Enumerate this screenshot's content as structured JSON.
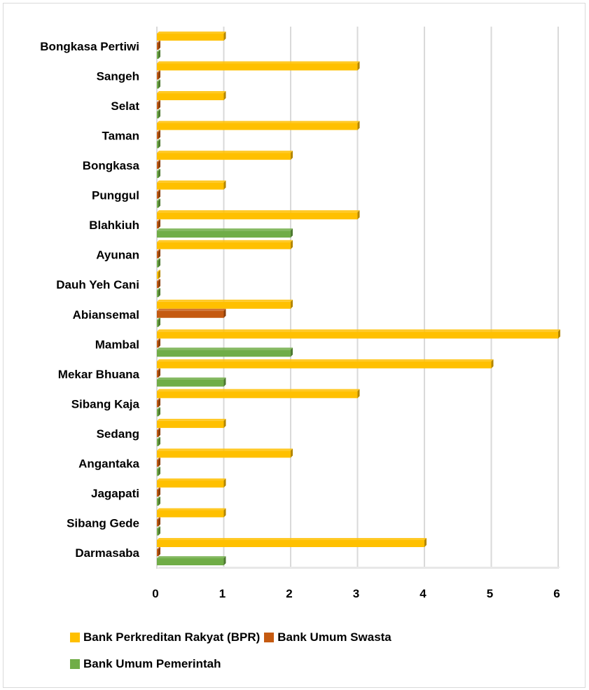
{
  "chart_data": {
    "type": "bar",
    "orientation": "horizontal",
    "categories": [
      "Darmasaba",
      "Sibang Gede",
      "Jagapati",
      "Angantaka",
      "Sedang",
      "Sibang Kaja",
      "Mekar Bhuana",
      "Mambal",
      "Abiansemal",
      "Dauh Yeh Cani",
      "Ayunan",
      "Blahkiuh",
      "Punggul",
      "Bongkasa",
      "Taman",
      "Selat",
      "Sangeh",
      "Bongkasa Pertiwi"
    ],
    "series": [
      {
        "name": "Bank Perkreditan Rakyat (BPR)",
        "color": "#FFC000",
        "values": [
          4,
          1,
          1,
          2,
          1,
          3,
          5,
          6,
          2,
          0,
          2,
          3,
          1,
          2,
          3,
          1,
          3,
          1
        ]
      },
      {
        "name": "Bank Umum Swasta",
        "color": "#C55A11",
        "values": [
          0,
          0,
          0,
          0,
          0,
          0,
          0,
          0,
          1,
          0,
          0,
          0,
          0,
          0,
          0,
          0,
          0,
          0
        ]
      },
      {
        "name": "Bank Umum Pemerintah",
        "color": "#70AD47",
        "values": [
          1,
          0,
          0,
          0,
          0,
          0,
          1,
          2,
          0,
          0,
          0,
          2,
          0,
          0,
          0,
          0,
          0,
          0
        ]
      }
    ],
    "xlim": [
      0,
      6
    ],
    "xticks": [
      "0",
      "1",
      "2",
      "3",
      "4",
      "5",
      "6"
    ],
    "grid": true,
    "legend_position": "bottom",
    "title": "",
    "xlabel": "",
    "ylabel": ""
  },
  "legend": {
    "rows": [
      [
        {
          "label": "Bank Perkreditan Rakyat (BPR)",
          "color": "#FFC000"
        },
        {
          "label": "Bank Umum Swasta",
          "color": "#C55A11"
        }
      ],
      [
        {
          "label": "Bank Umum Pemerintah",
          "color": "#70AD47"
        }
      ]
    ]
  }
}
